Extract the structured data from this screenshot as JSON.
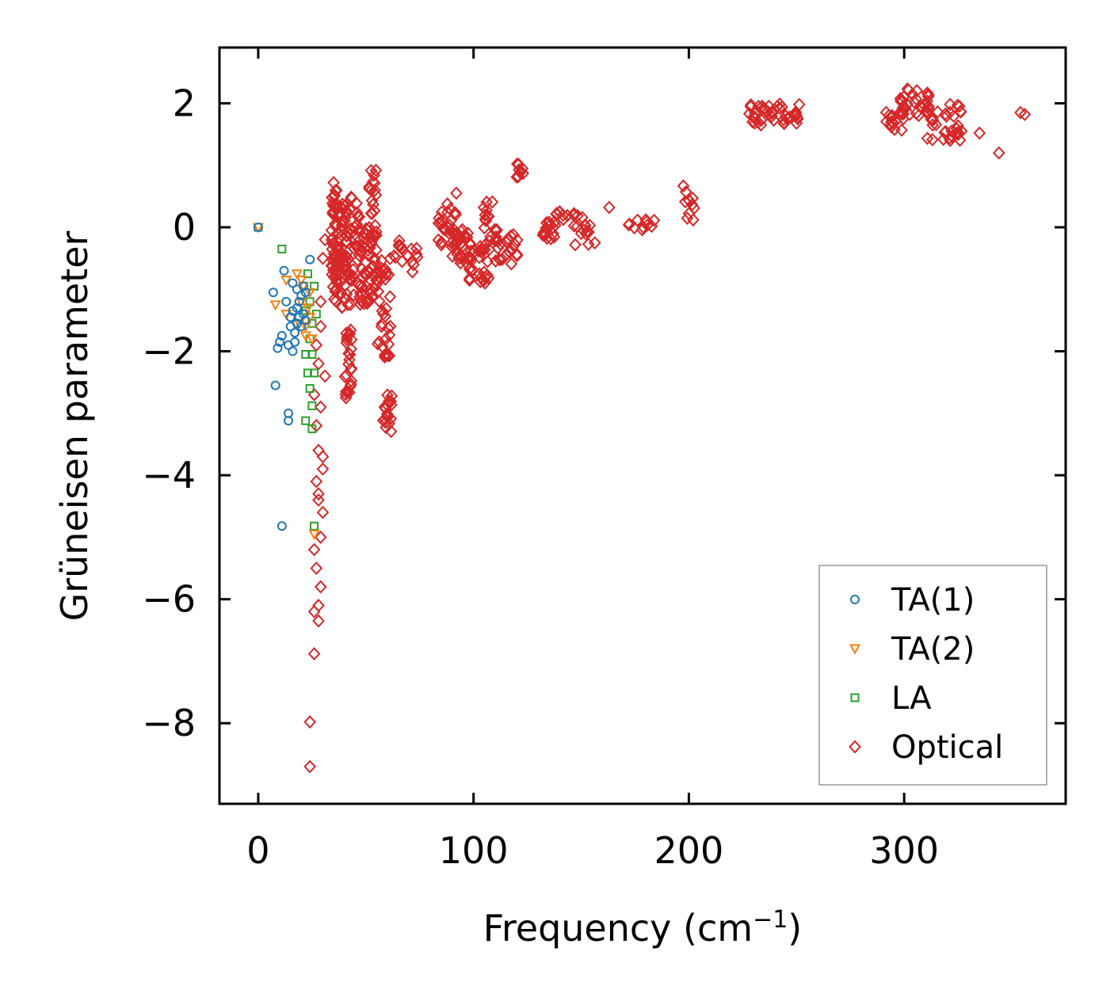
{
  "chart_data": {
    "type": "scatter",
    "title": "",
    "xlabel": "Frequency (cm",
    "xlabel_sup": "−1",
    "xlabel_end": ")",
    "ylabel": "Grüneisen parameter",
    "xlim": [
      -18,
      375
    ],
    "ylim": [
      -9.3,
      2.9
    ],
    "xticks": [
      0,
      100,
      200,
      300
    ],
    "xtick_labels": [
      "0",
      "100",
      "200",
      "300"
    ],
    "yticks": [
      2,
      0,
      -2,
      -4,
      -6,
      -8
    ],
    "ytick_labels": [
      "2",
      "0",
      "−2",
      "−4",
      "−6",
      "−8"
    ],
    "legend_location": "lower-right",
    "colors": {
      "TA1": "#1f77b4",
      "TA2": "#ff7f0e",
      "LA": "#2ca02c",
      "Optical": "#d62728"
    },
    "series": [
      {
        "name": "TA(1)",
        "marker": "circle",
        "color": "#1f77b4",
        "points": [
          [
            0,
            0
          ],
          [
            12,
            -0.7
          ],
          [
            7,
            -1.05
          ],
          [
            11,
            -1.75
          ],
          [
            9,
            -1.95
          ],
          [
            13,
            -1.2
          ],
          [
            16,
            -0.9
          ],
          [
            15,
            -1.6
          ],
          [
            17,
            -1.85
          ],
          [
            14,
            -1.9
          ],
          [
            16,
            -2.0
          ],
          [
            10,
            -1.85
          ],
          [
            8,
            -2.55
          ],
          [
            14,
            -3.0
          ],
          [
            14,
            -3.12
          ],
          [
            11,
            -4.82
          ],
          [
            24,
            -0.52
          ],
          [
            21,
            -0.95
          ],
          [
            18,
            -1.3
          ],
          [
            19,
            -1.45
          ],
          [
            20,
            -1.1
          ],
          [
            22,
            -1.5
          ],
          [
            17,
            -1.7
          ],
          [
            19,
            -1.2
          ],
          [
            18,
            -1.55
          ],
          [
            21,
            -1.4
          ],
          [
            16,
            -1.35
          ],
          [
            20,
            -1.6
          ],
          [
            22,
            -1.05
          ],
          [
            15,
            -1.45
          ],
          [
            18,
            -1.0
          ]
        ]
      },
      {
        "name": "TA(2)",
        "marker": "triangle-down",
        "color": "#ff7f0e",
        "points": [
          [
            0,
            0
          ],
          [
            8,
            -1.25
          ],
          [
            13,
            -0.85
          ],
          [
            13,
            -1.4
          ],
          [
            18,
            -0.75
          ],
          [
            20,
            -1.2
          ],
          [
            22,
            -1.6
          ],
          [
            25,
            -1.8
          ],
          [
            24,
            -1.45
          ],
          [
            21,
            -0.95
          ],
          [
            23,
            -1.3
          ],
          [
            19,
            -1.55
          ],
          [
            24,
            -1.05
          ],
          [
            26,
            -4.95
          ],
          [
            22,
            -1.75
          ],
          [
            20,
            -0.85
          ]
        ]
      },
      {
        "name": "LA",
        "marker": "square",
        "color": "#2ca02c",
        "points": [
          [
            0,
            0
          ],
          [
            11,
            -0.35
          ],
          [
            23,
            -0.75
          ],
          [
            26,
            -0.95
          ],
          [
            22,
            -1.35
          ],
          [
            25,
            -1.55
          ],
          [
            24,
            -1.8
          ],
          [
            22,
            -2.05
          ],
          [
            25,
            -2.05
          ],
          [
            23,
            -2.35
          ],
          [
            26,
            -2.35
          ],
          [
            24,
            -2.6
          ],
          [
            25,
            -2.88
          ],
          [
            22,
            -3.12
          ],
          [
            25,
            -3.25
          ],
          [
            26,
            -4.82
          ],
          [
            27,
            -1.4
          ],
          [
            24,
            -1.2
          ]
        ]
      },
      {
        "name": "Optical",
        "marker": "diamond",
        "color": "#d62728",
        "clusters": [
          {
            "x": [
              34,
              37
            ],
            "y": [
              -1.2,
              0.6
            ],
            "n": 60
          },
          {
            "x": [
              37,
              43
            ],
            "y": [
              -1.3,
              0.4
            ],
            "n": 60
          },
          {
            "x": [
              40,
              44
            ],
            "y": [
              -2.8,
              -1.6
            ],
            "n": 25
          },
          {
            "x": [
              43,
              47
            ],
            "y": [
              -1.1,
              0.5
            ],
            "n": 25
          },
          {
            "x": [
              47,
              52
            ],
            "y": [
              -1.3,
              0.0
            ],
            "n": 30
          },
          {
            "x": [
              51,
              55
            ],
            "y": [
              -1.2,
              1.0
            ],
            "n": 45
          },
          {
            "x": [
              55,
              62
            ],
            "y": [
              -2.1,
              -0.5
            ],
            "n": 35
          },
          {
            "x": [
              58,
              62
            ],
            "y": [
              -3.3,
              -2.7
            ],
            "n": 18
          },
          {
            "x": [
              62,
              67
            ],
            "y": [
              -0.6,
              -0.2
            ],
            "n": 8
          },
          {
            "x": [
              69,
              74
            ],
            "y": [
              -0.8,
              -0.3
            ],
            "n": 8
          },
          {
            "x": [
              83,
              92
            ],
            "y": [
              -0.3,
              0.4
            ],
            "n": 30
          },
          {
            "x": [
              90,
              98
            ],
            "y": [
              -0.6,
              0.0
            ],
            "n": 25
          },
          {
            "x": [
              98,
              108
            ],
            "y": [
              -0.9,
              -0.2
            ],
            "n": 30
          },
          {
            "x": [
              104,
              111
            ],
            "y": [
              -0.4,
              0.5
            ],
            "n": 20
          },
          {
            "x": [
              110,
              121
            ],
            "y": [
              -0.6,
              -0.1
            ],
            "n": 20
          },
          {
            "x": [
              120,
              124
            ],
            "y": [
              0.8,
              1.05
            ],
            "n": 8
          },
          {
            "x": [
              128,
              138
            ],
            "y": [
              -0.2,
              0.1
            ],
            "n": 15
          },
          {
            "x": [
              138,
              147
            ],
            "y": [
              0.1,
              0.25
            ],
            "n": 8
          },
          {
            "x": [
              146,
              157
            ],
            "y": [
              -0.3,
              0.2
            ],
            "n": 15
          },
          {
            "x": [
              172,
              185
            ],
            "y": [
              -0.1,
              0.15
            ],
            "n": 10
          },
          {
            "x": [
              196,
              203
            ],
            "y": [
              0.1,
              0.7
            ],
            "n": 10
          },
          {
            "x": [
              228,
              252
            ],
            "y": [
              1.65,
              2.0
            ],
            "n": 40
          },
          {
            "x": [
              290,
              300
            ],
            "y": [
              1.55,
              1.9
            ],
            "n": 15
          },
          {
            "x": [
              298,
              312
            ],
            "y": [
              1.8,
              2.25
            ],
            "n": 30
          },
          {
            "x": [
              310,
              328
            ],
            "y": [
              1.4,
              2.0
            ],
            "n": 35
          }
        ],
        "points": [
          [
            35,
            0.72
          ],
          [
            31,
            -0.2
          ],
          [
            30,
            -0.5
          ],
          [
            29,
            -1.2
          ],
          [
            26,
            -2.7
          ],
          [
            27,
            -3.2
          ],
          [
            28,
            -3.6
          ],
          [
            30,
            -3.9
          ],
          [
            28,
            -4.3
          ],
          [
            30,
            -4.6
          ],
          [
            26,
            -5.2
          ],
          [
            27,
            -5.5
          ],
          [
            29,
            -5.8
          ],
          [
            28,
            -6.1
          ],
          [
            26,
            -6.2
          ],
          [
            28,
            -6.35
          ],
          [
            26,
            -6.88
          ],
          [
            24,
            -7.98
          ],
          [
            24,
            -8.7
          ],
          [
            28,
            -4.4
          ],
          [
            29,
            -5.0
          ],
          [
            27,
            -4.1
          ],
          [
            30,
            -3.7
          ],
          [
            29,
            -2.9
          ],
          [
            31,
            -2.4
          ],
          [
            28,
            -2.2
          ],
          [
            27,
            -1.9
          ],
          [
            29,
            -1.6
          ],
          [
            335,
            1.52
          ],
          [
            344,
            1.2
          ],
          [
            356,
            1.82
          ],
          [
            354,
            1.85
          ],
          [
            163,
            0.32
          ],
          [
            180,
            0.12
          ],
          [
            202,
            0.12
          ],
          [
            234,
            1.95
          ],
          [
            246,
            1.75
          ],
          [
            250,
            1.68
          ],
          [
            66,
            -0.3
          ],
          [
            92,
            0.55
          ],
          [
            118,
            -0.35
          ],
          [
            140,
            0.25
          ],
          [
            150,
            -0.1
          ]
        ]
      }
    ],
    "legend": [
      "TA(1)",
      "TA(2)",
      "LA",
      "Optical"
    ]
  }
}
